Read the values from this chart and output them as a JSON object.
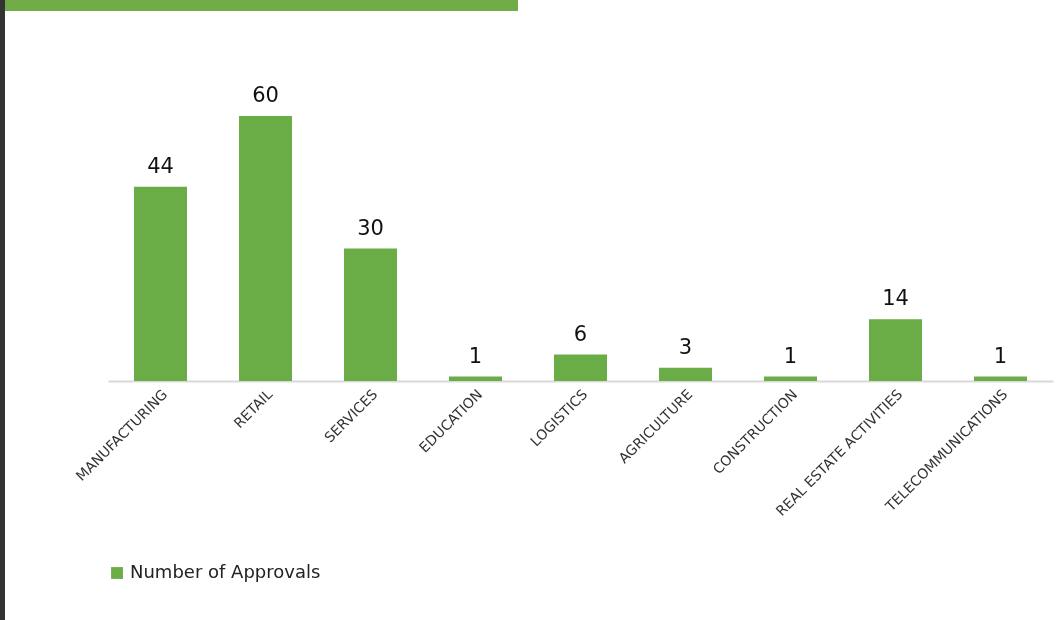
{
  "chart_data": {
    "type": "bar",
    "categories": [
      "MANUFACTURING",
      "RETAIL",
      "SERVICES",
      "EDUCATION",
      "LOGISTICS",
      "AGRICULTURE",
      "CONSTRUCTION",
      "REAL ESTATE ACTIVITIES",
      "TELECOMMUNICATIONS"
    ],
    "series": [
      {
        "name": "Number of Approvals",
        "color": "#6aad46",
        "values": [
          44,
          60,
          30,
          1,
          6,
          3,
          1,
          14,
          1
        ]
      }
    ],
    "data_labels": true,
    "legend": "bottom",
    "grid": false
  }
}
